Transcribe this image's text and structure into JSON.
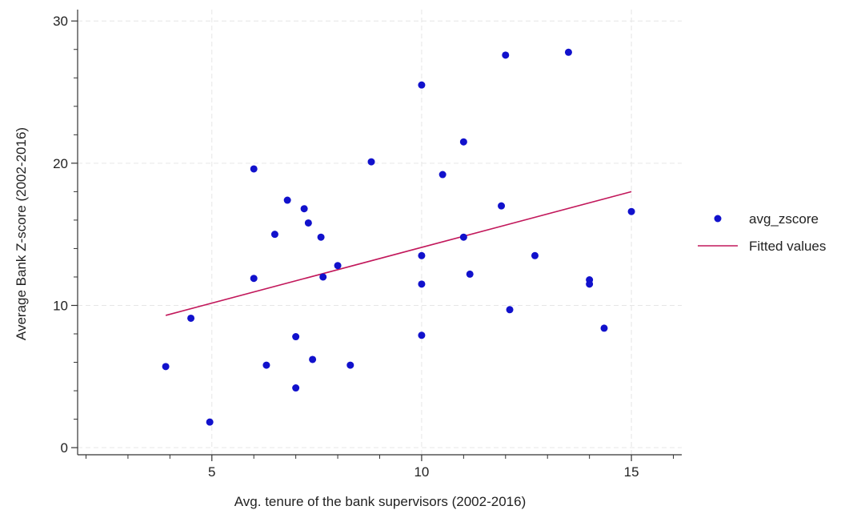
{
  "chart_data": {
    "type": "scatter",
    "xlabel": "Avg. tenure of the bank supervisors (2002-2016)",
    "ylabel": "Average Bank Z-score (2002-2016)",
    "xlim": [
      1.8,
      16.2
    ],
    "ylim": [
      -0.5,
      30.8
    ],
    "x_ticks": [
      5,
      10,
      15
    ],
    "x_minor_ticks": [
      2,
      3,
      4,
      6,
      7,
      8,
      9,
      11,
      12,
      13,
      14,
      16
    ],
    "y_ticks": [
      0,
      10,
      20,
      30
    ],
    "y_minor_ticks": [
      2,
      4,
      6,
      8,
      12,
      14,
      16,
      18,
      22,
      24,
      26,
      28
    ],
    "x_tick_labels": [
      "5",
      "10",
      "15"
    ],
    "y_tick_labels": [
      "0",
      "10",
      "20",
      "30"
    ],
    "grid": true,
    "legend_position": "right",
    "series": [
      {
        "name": "avg_zscore",
        "kind": "scatter",
        "color": "#1111cc",
        "points": [
          [
            3.9,
            5.7
          ],
          [
            4.5,
            9.1
          ],
          [
            4.95,
            1.8
          ],
          [
            6.0,
            19.6
          ],
          [
            6.0,
            11.9
          ],
          [
            6.3,
            5.8
          ],
          [
            6.5,
            15.0
          ],
          [
            6.8,
            17.4
          ],
          [
            7.0,
            7.8
          ],
          [
            7.0,
            4.2
          ],
          [
            7.2,
            16.8
          ],
          [
            7.3,
            15.8
          ],
          [
            7.4,
            6.2
          ],
          [
            7.6,
            14.8
          ],
          [
            7.65,
            12.0
          ],
          [
            8.0,
            12.8
          ],
          [
            8.3,
            5.8
          ],
          [
            8.8,
            20.1
          ],
          [
            10.0,
            25.5
          ],
          [
            10.0,
            13.5
          ],
          [
            10.0,
            11.5
          ],
          [
            10.0,
            7.9
          ],
          [
            10.5,
            19.2
          ],
          [
            11.0,
            21.5
          ],
          [
            11.0,
            14.8
          ],
          [
            11.15,
            12.2
          ],
          [
            11.9,
            17.0
          ],
          [
            12.0,
            27.6
          ],
          [
            12.1,
            9.7
          ],
          [
            12.7,
            13.5
          ],
          [
            13.5,
            27.8
          ],
          [
            14.0,
            11.8
          ],
          [
            14.0,
            11.5
          ],
          [
            14.35,
            8.4
          ],
          [
            15.0,
            16.6
          ]
        ]
      },
      {
        "name": "Fitted values",
        "kind": "line",
        "color": "#c2185b",
        "points": [
          [
            3.9,
            9.3
          ],
          [
            15.0,
            18.0
          ]
        ]
      }
    ]
  }
}
